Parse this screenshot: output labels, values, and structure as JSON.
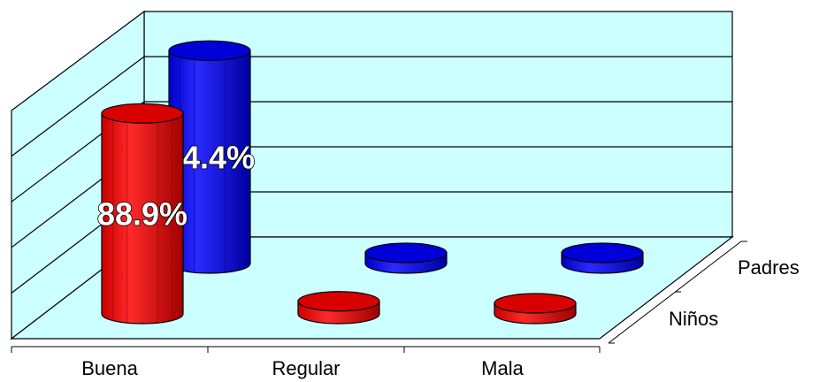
{
  "chart_data": {
    "type": "bar",
    "style": "3d-cylinder",
    "categories": [
      "Buena",
      "Regular",
      "Mala"
    ],
    "series": [
      {
        "name": "Niños",
        "values": [
          88.9,
          5.6,
          0
        ],
        "color": "#ff0000",
        "data_labels": [
          "88.9%",
          "",
          ""
        ]
      },
      {
        "name": "Padres",
        "values": [
          94.4,
          2.8,
          0
        ],
        "color": "#0000ff",
        "data_labels": [
          "94.4%",
          "",
          ""
        ]
      }
    ],
    "ylim": [
      0,
      100
    ],
    "grid": true,
    "wall_color": "#ccffff",
    "title": "",
    "xlabel": "",
    "ylabel": ""
  }
}
